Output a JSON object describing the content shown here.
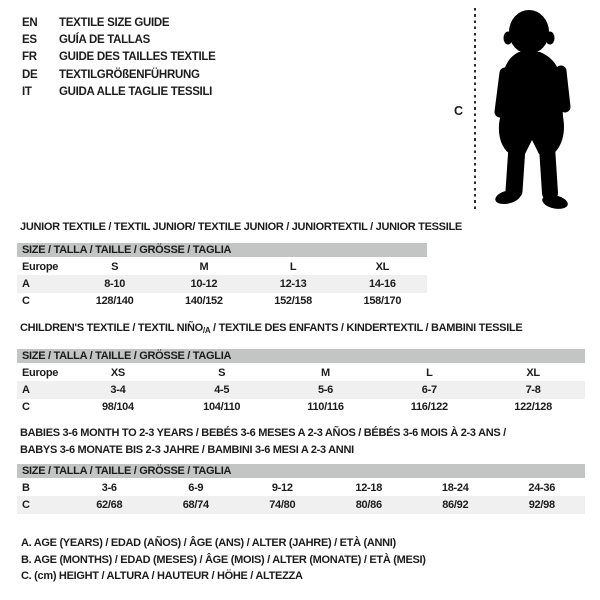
{
  "page": {
    "background": "#ffffff",
    "text_color": "#1c1c1c",
    "table_header_bar_color": "#c3c4c4",
    "table_alt_row_color": "#f0f0f0",
    "silhouette_color": "#000000"
  },
  "language_header": {
    "items": [
      {
        "code": "EN",
        "title": "TEXTILE SIZE GUIDE"
      },
      {
        "code": "ES",
        "title": "GUÍA DE TALLAS"
      },
      {
        "code": "FR",
        "title": "GUIDE DES TAILLES TEXTILE"
      },
      {
        "code": "DE",
        "title": "TEXTILGRÖßENFÜHRUNG"
      },
      {
        "code": "IT",
        "title": "GUIDA ALLE TAGLIE TESSILI"
      }
    ]
  },
  "figure": {
    "label": "C",
    "description": "toddler-silhouette-with-height-measure-line"
  },
  "tables": [
    {
      "title_lines": [
        [
          {
            "t": "JUNIOR TEXTILE / TEXTIL JUNIOR/ TEXTILE JUNIOR / JUNIORTEXTIL / JUNIOR TESSILE"
          }
        ]
      ],
      "header": "SIZE / TALLA / TAILLE / GRÖSSE / TAGLIA",
      "rows": [
        {
          "label": "Europe",
          "values": [
            "S",
            "M",
            "L",
            "XL"
          ]
        },
        {
          "label": "A",
          "values": [
            "8-10",
            "10-12",
            "12-13",
            "14-16"
          ]
        },
        {
          "label": "C",
          "values": [
            "128/140",
            "140/152",
            "152/158",
            "158/170"
          ]
        }
      ]
    },
    {
      "title_lines": [
        [
          {
            "t": "CHILDREN'S TEXTILE / TEXTIL NIÑO"
          },
          {
            "t": "/A",
            "sub": true
          },
          {
            "t": " / TEXTILE DES ENFANTS / KINDERTEXTIL / BAMBINI TESSILE"
          }
        ]
      ],
      "header": "SIZE / TALLA / TAILLE / GRÖSSE / TAGLIA",
      "rows": [
        {
          "label": "Europe",
          "values": [
            "XS",
            "S",
            "M",
            "L",
            "XL"
          ]
        },
        {
          "label": "A",
          "values": [
            "3-4",
            "4-5",
            "5-6",
            "6-7",
            "7-8"
          ]
        },
        {
          "label": "C",
          "values": [
            "98/104",
            "104/110",
            "110/116",
            "116/122",
            "122/128"
          ]
        }
      ]
    },
    {
      "title_lines": [
        [
          {
            "t": "BABIES 3-6 MONTH TO 2-3 YEARS / BEBÉS 3-6 MESES A 2-3 AÑOS / BÉBÉS 3-6 MOIS À 2-3 ANS /"
          }
        ],
        [
          {
            "t": "BABYS 3-6 MONATE BIS 2-3 JAHRE / BAMBINI 3-6 MESI A 2-3 ANNI"
          }
        ]
      ],
      "header": "SIZE / TALLA / TAILLE / GRÖSSE / TAGLIA",
      "rows": [
        {
          "label": "B",
          "values": [
            "3-6",
            "6-9",
            "9-12",
            "12-18",
            "18-24",
            "24-36"
          ]
        },
        {
          "label": "C",
          "values": [
            "62/68",
            "68/74",
            "74/80",
            "80/86",
            "86/92",
            "92/98"
          ]
        }
      ]
    }
  ],
  "legend": [
    "A. AGE (YEARS) / EDAD (AÑOS) / ÂGE (ANS) / ALTER (JAHRE) / ETÀ (ANNI)",
    "B. AGE (MONTHS) / EDAD (MESES) / ÂGE (MOIS) / ALTER (MONATE) / ETÀ (MESI)",
    "C. (cm) HEIGHT / ALTURA / HAUTEUR / HÖHE / ALTEZZA"
  ]
}
